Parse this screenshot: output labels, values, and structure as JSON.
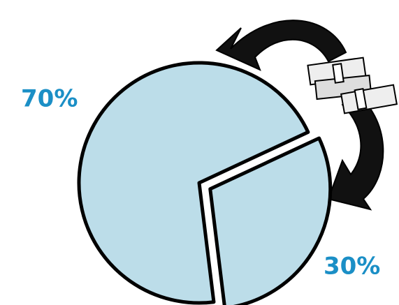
{
  "chart_data": {
    "type": "pie",
    "values": [
      30,
      70
    ],
    "value_labels": [
      "30%",
      "70%"
    ],
    "color": "#bcdde9",
    "label_color": "#1b8fc6"
  }
}
